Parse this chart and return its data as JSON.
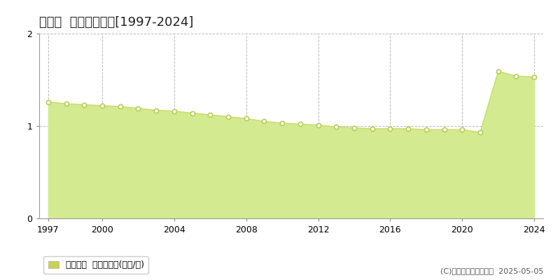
{
  "title": "下川町  基準地価推移[1997-2024]",
  "years": [
    1997,
    1998,
    1999,
    2000,
    2001,
    2002,
    2003,
    2004,
    2005,
    2006,
    2007,
    2008,
    2009,
    2010,
    2011,
    2012,
    2013,
    2014,
    2015,
    2016,
    2017,
    2018,
    2019,
    2020,
    2021,
    2022,
    2023,
    2024
  ],
  "values": [
    1.26,
    1.24,
    1.23,
    1.22,
    1.21,
    1.19,
    1.17,
    1.16,
    1.14,
    1.12,
    1.1,
    1.08,
    1.05,
    1.03,
    1.02,
    1.01,
    0.99,
    0.98,
    0.97,
    0.97,
    0.97,
    0.96,
    0.96,
    0.96,
    0.93,
    1.59,
    1.54,
    1.53
  ],
  "line_color": "#c8e06e",
  "fill_color": "#d4ea90",
  "marker_facecolor": "#ffffff",
  "marker_edgecolor": "#b8cc55",
  "background_color": "#ffffff",
  "grid_color": "#bbbbbb",
  "xlim_left": 1996.5,
  "xlim_right": 2024.5,
  "ylim": [
    0,
    2
  ],
  "yticks": [
    0,
    1,
    2
  ],
  "xticks": [
    1997,
    2000,
    2004,
    2008,
    2012,
    2016,
    2020,
    2024
  ],
  "legend_label": "基準地価  平均坪単価(万円/坪)",
  "legend_square_color": "#c8d44e",
  "copyright_text": "(C)土地価格ドットコム  2025-05-05",
  "title_fontsize": 13,
  "axis_fontsize": 9,
  "legend_fontsize": 9,
  "copyright_fontsize": 8
}
